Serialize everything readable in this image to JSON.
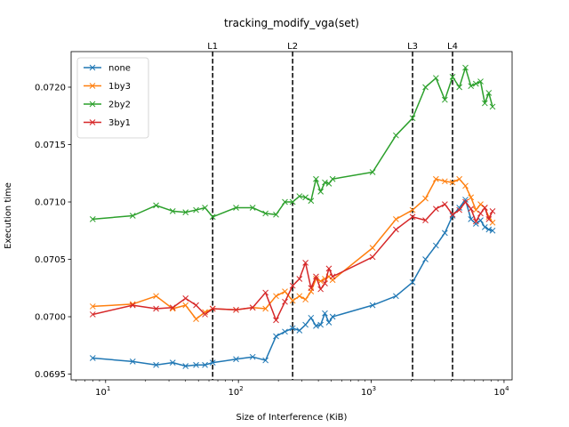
{
  "chart_data": {
    "type": "line",
    "title": "tracking_modify_vga(set)",
    "xlabel": "Size of Interference (KiB)",
    "ylabel": "Execution time",
    "xscale": "log",
    "xlim": [
      5.5,
      11500
    ],
    "ylim": [
      0.06945,
      0.07231
    ],
    "x_ticks": [
      {
        "value": 10,
        "base": "10",
        "exp": "1"
      },
      {
        "value": 100,
        "base": "10",
        "exp": "2"
      },
      {
        "value": 1000,
        "base": "10",
        "exp": "3"
      },
      {
        "value": 10000,
        "base": "10",
        "exp": "4"
      }
    ],
    "y_ticks": [
      {
        "value": 0.0695,
        "label": "0.0695"
      },
      {
        "value": 0.07,
        "label": "0.0700"
      },
      {
        "value": 0.0705,
        "label": "0.0705"
      },
      {
        "value": 0.071,
        "label": "0.0710"
      },
      {
        "value": 0.0715,
        "label": "0.0715"
      },
      {
        "value": 0.072,
        "label": "0.0720"
      }
    ],
    "vlines": [
      {
        "x": 64,
        "label": "L1"
      },
      {
        "x": 256,
        "label": "L2"
      },
      {
        "x": 2048,
        "label": "L3"
      },
      {
        "x": 4096,
        "label": "L4"
      }
    ],
    "legend": {
      "position": "top-left"
    },
    "x": [
      8,
      16,
      24,
      32,
      40,
      48,
      56,
      64,
      96,
      128,
      160,
      192,
      224,
      256,
      288,
      320,
      352,
      384,
      416,
      448,
      480,
      512,
      1024,
      1536,
      2048,
      2560,
      3072,
      3584,
      4096,
      4608,
      5120,
      5632,
      6144,
      6656,
      7168,
      7680,
      8192
    ],
    "series": [
      {
        "name": "none",
        "color": "#1f77b4",
        "values": [
          0.06964,
          0.06961,
          0.06958,
          0.0696,
          0.06957,
          0.06958,
          0.06958,
          0.0696,
          0.06963,
          0.06965,
          0.06962,
          0.06983,
          0.06987,
          0.0699,
          0.06988,
          0.06993,
          0.06999,
          0.06992,
          0.06993,
          0.07003,
          0.06995,
          0.07,
          0.0701,
          0.07018,
          0.0703,
          0.0705,
          0.07062,
          0.07073,
          0.07088,
          0.07095,
          0.07102,
          0.07085,
          0.07081,
          0.07084,
          0.07078,
          0.07076,
          0.07075
        ]
      },
      {
        "name": "1by3",
        "color": "#ff7f0e",
        "values": [
          0.07009,
          0.07011,
          0.07018,
          0.07007,
          0.0701,
          0.06998,
          0.07004,
          0.07007,
          0.07006,
          0.07008,
          0.07007,
          0.07018,
          0.07022,
          0.07014,
          0.07018,
          0.07015,
          0.07022,
          0.07033,
          0.07031,
          0.07033,
          0.07035,
          0.07032,
          0.0706,
          0.07085,
          0.07093,
          0.07103,
          0.0712,
          0.07118,
          0.07117,
          0.0712,
          0.07114,
          0.07104,
          0.07093,
          0.07098,
          0.07095,
          0.07087,
          0.07082
        ]
      },
      {
        "name": "2by2",
        "color": "#2ca02c",
        "values": [
          0.07085,
          0.07088,
          0.07097,
          0.07092,
          0.07091,
          0.07093,
          0.07095,
          0.07087,
          0.07095,
          0.07095,
          0.0709,
          0.07089,
          0.071,
          0.071,
          0.07105,
          0.07104,
          0.07101,
          0.0712,
          0.07109,
          0.07117,
          0.07116,
          0.0712,
          0.07126,
          0.07158,
          0.07173,
          0.072,
          0.07208,
          0.07189,
          0.07209,
          0.072,
          0.07217,
          0.07201,
          0.07203,
          0.07205,
          0.07186,
          0.07195,
          0.07183
        ]
      },
      {
        "name": "3by1",
        "color": "#d62728",
        "values": [
          0.07002,
          0.0701,
          0.07007,
          0.07008,
          0.07016,
          0.0701,
          0.07002,
          0.07007,
          0.07006,
          0.07008,
          0.07021,
          0.06997,
          0.07013,
          0.07027,
          0.07033,
          0.07047,
          0.07025,
          0.07035,
          0.07024,
          0.07029,
          0.07042,
          0.07035,
          0.07052,
          0.07076,
          0.07087,
          0.07084,
          0.07094,
          0.07098,
          0.07089,
          0.07093,
          0.071,
          0.07094,
          0.07083,
          0.0709,
          0.07095,
          0.07085,
          0.07092
        ]
      }
    ]
  }
}
